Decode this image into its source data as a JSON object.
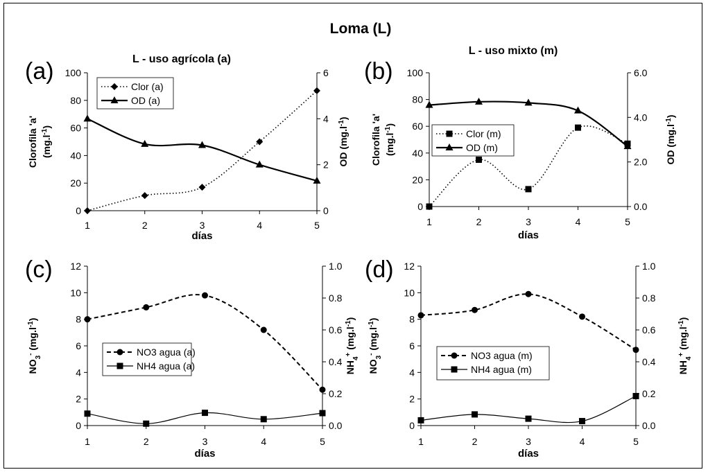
{
  "title": "Loma (L)",
  "chart_data": [
    {
      "type": "line",
      "panel_letter": "(a)",
      "title": "L - uso agrícola (a)",
      "xlabel": "días",
      "ylabel_left": "Clorofila 'a' (mg.l-1)",
      "ylabel_left_parts": [
        "Clorofila 'a'",
        "(mg.l",
        "-1",
        ")"
      ],
      "ylabel_right": "OD (mg.l-1)",
      "ylabel_right_parts": [
        "OD (mg.l",
        "-1",
        ")"
      ],
      "x": [
        1,
        2,
        3,
        4,
        5
      ],
      "ylim_left": [
        0,
        100
      ],
      "yticks_left": [
        "0",
        "20",
        "40",
        "60",
        "80",
        "100"
      ],
      "ylim_right": [
        0,
        6
      ],
      "yticks_right": [
        "0",
        "2",
        "4",
        "6"
      ],
      "legend": "upper-left",
      "series": [
        {
          "name": "Clor (a)",
          "axis": "left",
          "values": [
            0,
            11,
            17,
            50,
            87
          ],
          "style": "dotted",
          "marker": "diamond"
        },
        {
          "name": "OD (a)",
          "axis": "right",
          "values": [
            4.0,
            2.9,
            2.85,
            2.0,
            1.3
          ],
          "style": "solid-bold",
          "marker": "triangle"
        }
      ]
    },
    {
      "type": "line",
      "panel_letter": "(b)",
      "title": "L - uso mixto (m)",
      "xlabel": "días",
      "ylabel_left": "Clorofila 'a' (mg.l-1)",
      "ylabel_left_parts": [
        "Clorofila 'a'",
        "(mg.l",
        "-1",
        ")"
      ],
      "ylabel_right": "OD (mg.l-1)",
      "ylabel_right_parts": [
        "OD (mg.l",
        "-1",
        ")"
      ],
      "x": [
        1,
        2,
        3,
        4,
        5
      ],
      "ylim_left": [
        0,
        100
      ],
      "yticks_left": [
        "0",
        "20",
        "40",
        "60",
        "80",
        "100"
      ],
      "ylim_right": [
        0,
        6
      ],
      "yticks_right": [
        "0.0",
        "2.0",
        "4.0",
        "6.0"
      ],
      "legend": "center-left",
      "series": [
        {
          "name": "Clor (m)",
          "axis": "left",
          "values": [
            0,
            35,
            13,
            59,
            47
          ],
          "style": "dotted",
          "marker": "square"
        },
        {
          "name": "OD (m)",
          "axis": "right",
          "values": [
            4.55,
            4.7,
            4.65,
            4.3,
            2.7
          ],
          "style": "solid-bold",
          "marker": "triangle"
        }
      ]
    },
    {
      "type": "line",
      "panel_letter": "(c)",
      "title": "",
      "xlabel": "días",
      "ylabel_left": "NO3- (mg.l-1)",
      "ylabel_left_parts": [
        "NO",
        "3",
        "-",
        " (mg.l",
        "-1",
        ")"
      ],
      "ylabel_right": "NH4+ (mg.l-1)",
      "ylabel_right_parts": [
        "NH",
        "4",
        "+",
        " (mg.l",
        "-1",
        ")"
      ],
      "x": [
        1,
        2,
        3,
        4,
        5
      ],
      "ylim_left": [
        0,
        12
      ],
      "yticks_left": [
        "0",
        "2",
        "4",
        "6",
        "8",
        "10",
        "12"
      ],
      "ylim_right": [
        0,
        1
      ],
      "yticks_right": [
        "0.0",
        "0.2",
        "0.4",
        "0.6",
        "0.8",
        "1.0"
      ],
      "legend": "center-left",
      "series": [
        {
          "name": "NO3 agua (a)",
          "axis": "left",
          "values": [
            8.0,
            8.9,
            9.8,
            7.2,
            2.7
          ],
          "style": "dashed",
          "marker": "circle"
        },
        {
          "name": "NH4 agua (a)",
          "axis": "right",
          "values": [
            0.075,
            0.012,
            0.08,
            0.04,
            0.078
          ],
          "style": "solid-thin",
          "marker": "square"
        }
      ]
    },
    {
      "type": "line",
      "panel_letter": "(d)",
      "title": "",
      "xlabel": "días",
      "ylabel_left": "NO3- (mg.l-1)",
      "ylabel_left_parts": [
        "NO",
        "3",
        "-",
        " (mg.l",
        "-1",
        ")"
      ],
      "ylabel_right": "NH4+ (mg.l-1)",
      "ylabel_right_parts": [
        "NH",
        "4",
        "+",
        " (mg.l",
        "-1",
        ")"
      ],
      "x": [
        1,
        2,
        3,
        4,
        5
      ],
      "ylim_left": [
        0,
        12
      ],
      "yticks_left": [
        "0",
        "2",
        "4",
        "6",
        "8",
        "10",
        "12"
      ],
      "ylim_right": [
        0,
        1
      ],
      "yticks_right": [
        "0.0",
        "0.2",
        "0.4",
        "0.6",
        "0.8",
        "1.0"
      ],
      "legend": "center-left",
      "series": [
        {
          "name": "NO3 agua (m)",
          "axis": "left",
          "values": [
            8.3,
            8.7,
            9.9,
            8.2,
            5.7
          ],
          "style": "dashed",
          "marker": "circle"
        },
        {
          "name": "NH4 agua (m)",
          "axis": "right",
          "values": [
            0.033,
            0.07,
            0.043,
            0.028,
            0.185
          ],
          "style": "solid-thin",
          "marker": "square"
        }
      ]
    }
  ]
}
